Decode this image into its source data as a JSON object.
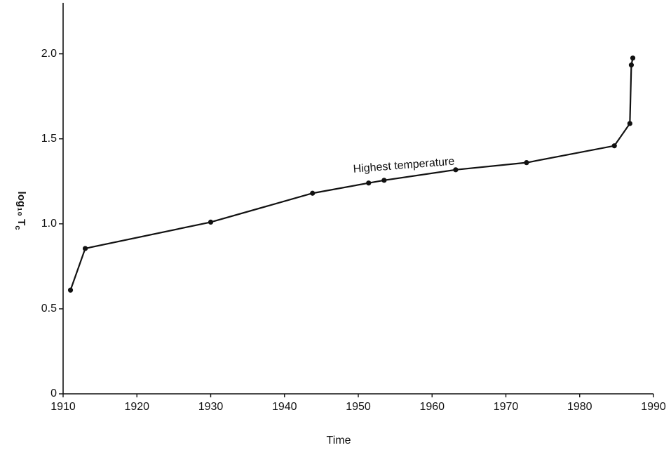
{
  "chart_data": {
    "type": "line",
    "xlabel": "Time",
    "ylabel": "log₁₀ T",
    "ylabel_subscript": "c",
    "annotation": "Highest temperature",
    "x": [
      1911,
      1913,
      1930,
      1943.8,
      1951.4,
      1953.5,
      1963.2,
      1972.8,
      1984.7,
      1986.8,
      1987,
      1987.2
    ],
    "series": [
      {
        "color": "#111111",
        "values": [
          0.61,
          0.855,
          1.01,
          1.18,
          1.24,
          1.256,
          1.318,
          1.36,
          1.459,
          1.59,
          1.934,
          1.975
        ]
      }
    ],
    "xlim": [
      1910,
      1990
    ],
    "xticks": [
      1910,
      1920,
      1930,
      1940,
      1950,
      1960,
      1970,
      1980,
      1990
    ],
    "ylim": [
      0,
      2.3
    ],
    "yticks": [
      0,
      0.5,
      {
        "value": 1,
        "label": "1.0"
      },
      1.5,
      {
        "value": 2,
        "label": "2.0"
      }
    ],
    "markers": true
  }
}
